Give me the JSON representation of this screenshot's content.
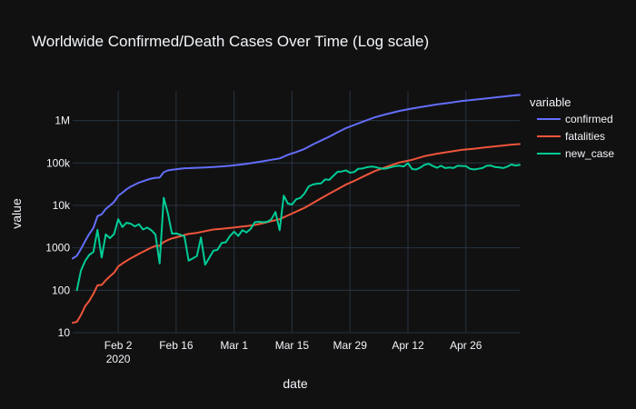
{
  "chart_data": {
    "type": "line",
    "title": "Worldwide Confirmed/Death Cases Over Time (Log scale)",
    "xlabel": "date",
    "ylabel": "value",
    "y_scale": "log",
    "ylim": [
      10,
      5000000
    ],
    "xlim": [
      "2020-01-22",
      "2020-05-09"
    ],
    "grid": true,
    "legend": {
      "title": "variable",
      "placement": "top-right"
    },
    "x_ticks": [
      {
        "date": "2020-02-02",
        "label": "Feb 2",
        "sublabel": "2020"
      },
      {
        "date": "2020-02-16",
        "label": "Feb 16",
        "sublabel": ""
      },
      {
        "date": "2020-03-01",
        "label": "Mar 1",
        "sublabel": ""
      },
      {
        "date": "2020-03-15",
        "label": "Mar 15",
        "sublabel": ""
      },
      {
        "date": "2020-03-29",
        "label": "Mar 29",
        "sublabel": ""
      },
      {
        "date": "2020-04-12",
        "label": "Apr 12",
        "sublabel": ""
      },
      {
        "date": "2020-04-26",
        "label": "Apr 26",
        "sublabel": ""
      }
    ],
    "y_ticks": [
      {
        "value": 10,
        "label": "10"
      },
      {
        "value": 100,
        "label": "100"
      },
      {
        "value": 1000,
        "label": "1000"
      },
      {
        "value": 10000,
        "label": "10k"
      },
      {
        "value": 100000,
        "label": "100k"
      },
      {
        "value": 1000000,
        "label": "1M"
      }
    ],
    "series": [
      {
        "name": "confirmed",
        "color": "#636efa",
        "points": [
          [
            "2020-01-22",
            560
          ],
          [
            "2020-01-23",
            650
          ],
          [
            "2020-01-24",
            940
          ],
          [
            "2020-01-25",
            1440
          ],
          [
            "2020-01-26",
            2120
          ],
          [
            "2020-01-27",
            2930
          ],
          [
            "2020-01-28",
            5580
          ],
          [
            "2020-01-29",
            6170
          ],
          [
            "2020-01-30",
            8240
          ],
          [
            "2020-01-31",
            9930
          ],
          [
            "2020-02-01",
            12040
          ],
          [
            "2020-02-02",
            16790
          ],
          [
            "2020-02-03",
            19880
          ],
          [
            "2020-02-04",
            23900
          ],
          [
            "2020-02-05",
            27640
          ],
          [
            "2020-02-06",
            30820
          ],
          [
            "2020-02-07",
            34400
          ],
          [
            "2020-02-08",
            37120
          ],
          [
            "2020-02-09",
            40150
          ],
          [
            "2020-02-10",
            42760
          ],
          [
            "2020-02-11",
            44800
          ],
          [
            "2020-02-12",
            45220
          ],
          [
            "2020-02-13",
            60370
          ],
          [
            "2020-02-14",
            66890
          ],
          [
            "2020-02-15",
            69030
          ],
          [
            "2020-02-16",
            71230
          ],
          [
            "2020-02-17",
            73260
          ],
          [
            "2020-02-18",
            75140
          ],
          [
            "2020-02-19",
            75640
          ],
          [
            "2020-02-21",
            76840
          ],
          [
            "2020-02-23",
            78600
          ],
          [
            "2020-02-25",
            80400
          ],
          [
            "2020-02-27",
            82750
          ],
          [
            "2020-02-29",
            86000
          ],
          [
            "2020-03-02",
            90300
          ],
          [
            "2020-03-04",
            95100
          ],
          [
            "2020-03-06",
            101800
          ],
          [
            "2020-03-08",
            109800
          ],
          [
            "2020-03-10",
            119000
          ],
          [
            "2020-03-12",
            128000
          ],
          [
            "2020-03-14",
            156000
          ],
          [
            "2020-03-16",
            181000
          ],
          [
            "2020-03-18",
            214000
          ],
          [
            "2020-03-20",
            272000
          ],
          [
            "2020-03-22",
            337000
          ],
          [
            "2020-03-24",
            417000
          ],
          [
            "2020-03-26",
            529000
          ],
          [
            "2020-03-28",
            660000
          ],
          [
            "2020-03-30",
            782000
          ],
          [
            "2020-04-01",
            932000
          ],
          [
            "2020-04-04",
            1197000
          ],
          [
            "2020-04-07",
            1426000
          ],
          [
            "2020-04-10",
            1691000
          ],
          [
            "2020-04-13",
            1920000
          ],
          [
            "2020-04-16",
            2152000
          ],
          [
            "2020-04-19",
            2402000
          ],
          [
            "2020-04-22",
            2623000
          ],
          [
            "2020-04-25",
            2898000
          ],
          [
            "2020-04-28",
            3097000
          ],
          [
            "2020-05-01",
            3343000
          ],
          [
            "2020-05-04",
            3582000
          ],
          [
            "2020-05-07",
            3845000
          ],
          [
            "2020-05-09",
            4024000
          ]
        ]
      },
      {
        "name": "fatalities",
        "color": "#ef553b",
        "points": [
          [
            "2020-01-22",
            17
          ],
          [
            "2020-01-23",
            18
          ],
          [
            "2020-01-24",
            26
          ],
          [
            "2020-01-25",
            42
          ],
          [
            "2020-01-26",
            56
          ],
          [
            "2020-01-27",
            82
          ],
          [
            "2020-01-28",
            131
          ],
          [
            "2020-01-29",
            133
          ],
          [
            "2020-01-30",
            171
          ],
          [
            "2020-01-31",
            213
          ],
          [
            "2020-02-01",
            259
          ],
          [
            "2020-02-02",
            362
          ],
          [
            "2020-02-03",
            426
          ],
          [
            "2020-02-04",
            492
          ],
          [
            "2020-02-05",
            564
          ],
          [
            "2020-02-06",
            634
          ],
          [
            "2020-02-07",
            719
          ],
          [
            "2020-02-08",
            806
          ],
          [
            "2020-02-09",
            906
          ],
          [
            "2020-02-10",
            1013
          ],
          [
            "2020-02-11",
            1113
          ],
          [
            "2020-02-12",
            1118
          ],
          [
            "2020-02-13",
            1371
          ],
          [
            "2020-02-14",
            1523
          ],
          [
            "2020-02-15",
            1666
          ],
          [
            "2020-02-16",
            1770
          ],
          [
            "2020-02-17",
            1868
          ],
          [
            "2020-02-18",
            2007
          ],
          [
            "2020-02-19",
            2122
          ],
          [
            "2020-02-21",
            2247
          ],
          [
            "2020-02-23",
            2469
          ],
          [
            "2020-02-25",
            2708
          ],
          [
            "2020-02-27",
            2810
          ],
          [
            "2020-02-29",
            2941
          ],
          [
            "2020-03-02",
            3085
          ],
          [
            "2020-03-04",
            3254
          ],
          [
            "2020-03-06",
            3460
          ],
          [
            "2020-03-08",
            3803
          ],
          [
            "2020-03-10",
            4262
          ],
          [
            "2020-03-12",
            4720
          ],
          [
            "2020-03-14",
            5819
          ],
          [
            "2020-03-16",
            7126
          ],
          [
            "2020-03-18",
            8733
          ],
          [
            "2020-03-20",
            11311
          ],
          [
            "2020-03-22",
            14652
          ],
          [
            "2020-03-24",
            18919
          ],
          [
            "2020-03-26",
            24110
          ],
          [
            "2020-03-28",
            30855
          ],
          [
            "2020-03-30",
            37582
          ],
          [
            "2020-04-01",
            46800
          ],
          [
            "2020-04-04",
            64600
          ],
          [
            "2020-04-07",
            81900
          ],
          [
            "2020-04-10",
            102800
          ],
          [
            "2020-04-13",
            119000
          ],
          [
            "2020-04-16",
            145000
          ],
          [
            "2020-04-19",
            165000
          ],
          [
            "2020-04-22",
            183000
          ],
          [
            "2020-04-25",
            203000
          ],
          [
            "2020-04-28",
            217000
          ],
          [
            "2020-05-01",
            235000
          ],
          [
            "2020-05-04",
            251000
          ],
          [
            "2020-05-07",
            271000
          ],
          [
            "2020-05-09",
            279000
          ]
        ]
      },
      {
        "name": "new_case",
        "color": "#00cc96",
        "points": [
          [
            "2020-01-23",
            100
          ],
          [
            "2020-01-24",
            290
          ],
          [
            "2020-01-25",
            490
          ],
          [
            "2020-01-26",
            680
          ],
          [
            "2020-01-27",
            800
          ],
          [
            "2020-01-28",
            2650
          ],
          [
            "2020-01-29",
            590
          ],
          [
            "2020-01-30",
            2070
          ],
          [
            "2020-01-31",
            1690
          ],
          [
            "2020-02-01",
            2110
          ],
          [
            "2020-02-02",
            4750
          ],
          [
            "2020-02-03",
            3090
          ],
          [
            "2020-02-04",
            3900
          ],
          [
            "2020-02-05",
            3700
          ],
          [
            "2020-02-06",
            3200
          ],
          [
            "2020-02-07",
            3600
          ],
          [
            "2020-02-08",
            2700
          ],
          [
            "2020-02-09",
            3000
          ],
          [
            "2020-02-10",
            2600
          ],
          [
            "2020-02-11",
            2050
          ],
          [
            "2020-02-12",
            430
          ],
          [
            "2020-02-13",
            15150
          ],
          [
            "2020-02-14",
            6500
          ],
          [
            "2020-02-15",
            2150
          ],
          [
            "2020-02-16",
            2200
          ],
          [
            "2020-02-17",
            2030
          ],
          [
            "2020-02-18",
            1880
          ],
          [
            "2020-02-19",
            500
          ],
          [
            "2020-02-20",
            560
          ],
          [
            "2020-02-21",
            640
          ],
          [
            "2020-02-22",
            1750
          ],
          [
            "2020-02-23",
            400
          ],
          [
            "2020-02-24",
            580
          ],
          [
            "2020-02-25",
            850
          ],
          [
            "2020-02-26",
            900
          ],
          [
            "2020-02-27",
            1300
          ],
          [
            "2020-02-28",
            1350
          ],
          [
            "2020-02-29",
            1900
          ],
          [
            "2020-03-01",
            2400
          ],
          [
            "2020-03-02",
            1900
          ],
          [
            "2020-03-03",
            2600
          ],
          [
            "2020-03-04",
            2300
          ],
          [
            "2020-03-05",
            2800
          ],
          [
            "2020-03-06",
            4000
          ],
          [
            "2020-03-07",
            4100
          ],
          [
            "2020-03-08",
            4000
          ],
          [
            "2020-03-09",
            4100
          ],
          [
            "2020-03-10",
            4700
          ],
          [
            "2020-03-11",
            7000
          ],
          [
            "2020-03-12",
            2600
          ],
          [
            "2020-03-13",
            17000
          ],
          [
            "2020-03-14",
            11000
          ],
          [
            "2020-03-15",
            10500
          ],
          [
            "2020-03-16",
            14000
          ],
          [
            "2020-03-17",
            15000
          ],
          [
            "2020-03-18",
            19000
          ],
          [
            "2020-03-19",
            28000
          ],
          [
            "2020-03-20",
            31000
          ],
          [
            "2020-03-21",
            32500
          ],
          [
            "2020-03-22",
            33000
          ],
          [
            "2020-03-23",
            41000
          ],
          [
            "2020-03-24",
            40000
          ],
          [
            "2020-03-25",
            50000
          ],
          [
            "2020-03-26",
            62000
          ],
          [
            "2020-03-27",
            63000
          ],
          [
            "2020-03-28",
            67000
          ],
          [
            "2020-03-29",
            59000
          ],
          [
            "2020-03-30",
            61000
          ],
          [
            "2020-03-31",
            73000
          ],
          [
            "2020-04-01",
            74000
          ],
          [
            "2020-04-02",
            79000
          ],
          [
            "2020-04-03",
            82000
          ],
          [
            "2020-04-04",
            81000
          ],
          [
            "2020-04-05",
            76000
          ],
          [
            "2020-04-06",
            73000
          ],
          [
            "2020-04-07",
            75000
          ],
          [
            "2020-04-08",
            80000
          ],
          [
            "2020-04-09",
            84000
          ],
          [
            "2020-04-10",
            86000
          ],
          [
            "2020-04-11",
            83000
          ],
          [
            "2020-04-12",
            99000
          ],
          [
            "2020-04-13",
            72000
          ],
          [
            "2020-04-14",
            70000
          ],
          [
            "2020-04-15",
            78000
          ],
          [
            "2020-04-16",
            90000
          ],
          [
            "2020-04-17",
            96000
          ],
          [
            "2020-04-18",
            85000
          ],
          [
            "2020-04-19",
            77000
          ],
          [
            "2020-04-20",
            86000
          ],
          [
            "2020-04-21",
            76000
          ],
          [
            "2020-04-22",
            78000
          ],
          [
            "2020-04-23",
            76000
          ],
          [
            "2020-04-24",
            86000
          ],
          [
            "2020-04-25",
            85000
          ],
          [
            "2020-04-26",
            84000
          ],
          [
            "2020-04-27",
            73000
          ],
          [
            "2020-04-28",
            70000
          ],
          [
            "2020-04-29",
            73000
          ],
          [
            "2020-04-30",
            76000
          ],
          [
            "2020-05-01",
            86000
          ],
          [
            "2020-05-02",
            87000
          ],
          [
            "2020-05-03",
            80000
          ],
          [
            "2020-05-04",
            79000
          ],
          [
            "2020-05-05",
            76000
          ],
          [
            "2020-05-06",
            82000
          ],
          [
            "2020-05-07",
            92000
          ],
          [
            "2020-05-08",
            87000
          ],
          [
            "2020-05-09",
            90000
          ]
        ]
      }
    ]
  }
}
